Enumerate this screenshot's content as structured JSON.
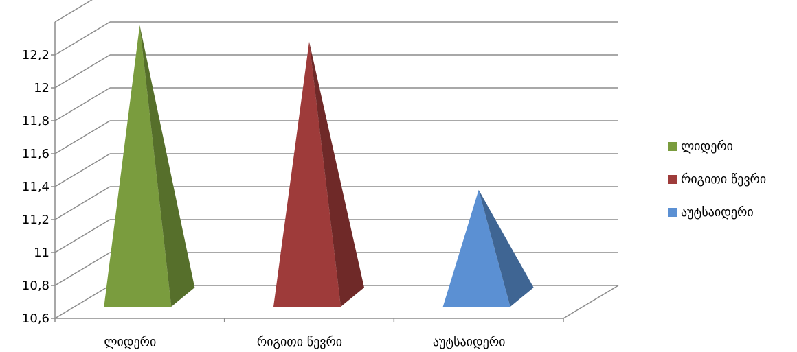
{
  "chart_data": {
    "type": "bar",
    "style": "3d-pyramid",
    "categories": [
      "ლიდერი",
      "რიგითი წევრი",
      "აუტსაიდერი"
    ],
    "series": [
      {
        "name": "ლიდერი",
        "values": [
          12.28,
          null,
          null
        ],
        "color": "#7a9c3e",
        "side_color": "#566f2b"
      },
      {
        "name": "რიგითი წევრი",
        "values": [
          null,
          12.18,
          null
        ],
        "color": "#9e3b3a",
        "side_color": "#6f2928"
      },
      {
        "name": "აუტსაიდერი",
        "values": [
          null,
          null,
          11.28
        ],
        "color": "#5b90d3",
        "side_color": "#3f6593"
      }
    ],
    "ylim": [
      10.6,
      12.2
    ],
    "yticks": [
      "10,6",
      "10,8",
      "11",
      "11,2",
      "11,4",
      "11,6",
      "11,8",
      "12",
      "12,2"
    ],
    "grid": true,
    "legend_position": "right",
    "xlabel": "",
    "ylabel": "",
    "title": ""
  }
}
